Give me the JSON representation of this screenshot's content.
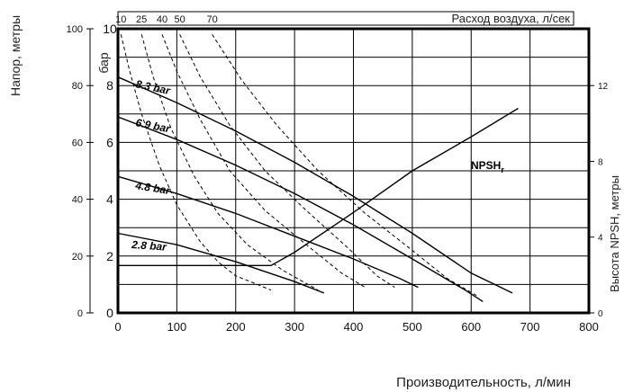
{
  "chart_data": {
    "type": "line",
    "title": "",
    "xlabel": "Производительность, л/мин",
    "ylabel_outer": "Напор, метры",
    "ylabel_inner": "бар",
    "ylabel_right": "Высота NPSH, метры",
    "top_axis_label": "Расход воздуха, л/сек",
    "xlim": [
      0,
      800
    ],
    "ylim_bar": [
      0,
      10
    ],
    "ylim_meters": [
      0,
      100
    ],
    "ylim_npsh": [
      0,
      15
    ],
    "x_ticks": [
      "0",
      "100",
      "200",
      "300",
      "400",
      "500",
      "600",
      "700",
      "800"
    ],
    "bar_ticks": [
      "0",
      "2",
      "4",
      "6",
      "8",
      "10"
    ],
    "meter_ticks": [
      "0",
      "20",
      "40",
      "60",
      "80",
      "100"
    ],
    "npsh_ticks": [
      "0",
      "4",
      "8",
      "12"
    ],
    "air_ticks": [
      "10",
      "25",
      "40",
      "50",
      "70"
    ],
    "grid": true,
    "series": [
      {
        "name": "8.3 bar",
        "unit": "bar",
        "x": [
          0,
          100,
          200,
          300,
          400,
          500,
          600,
          670
        ],
        "y": [
          8.3,
          7.4,
          6.4,
          5.3,
          4.1,
          2.8,
          1.4,
          0.7
        ]
      },
      {
        "name": "6.9 bar",
        "unit": "bar",
        "x": [
          0,
          100,
          200,
          300,
          400,
          500,
          590,
          620
        ],
        "y": [
          6.9,
          6.1,
          5.2,
          4.2,
          3.1,
          1.9,
          0.8,
          0.4
        ]
      },
      {
        "name": "4.8 bar",
        "unit": "bar",
        "x": [
          0,
          100,
          200,
          300,
          400,
          480,
          510
        ],
        "y": [
          4.8,
          4.2,
          3.5,
          2.7,
          1.9,
          1.2,
          0.9
        ]
      },
      {
        "name": "2.8 bar",
        "unit": "bar",
        "x": [
          0,
          100,
          200,
          300,
          350
        ],
        "y": [
          2.8,
          2.4,
          1.8,
          1.1,
          0.7
        ]
      },
      {
        "name": "NPSHr",
        "unit": "npsh_m",
        "x": [
          0,
          260,
          300,
          400,
          500,
          600,
          680
        ],
        "y": [
          2.5,
          2.5,
          3.2,
          5.3,
          7.5,
          9.3,
          10.8
        ]
      }
    ],
    "air_consumption_curves": [
      {
        "label": "10",
        "x": [
          5,
          20,
          40,
          70,
          100,
          140,
          170,
          200,
          225,
          260
        ],
        "y": [
          9.8,
          8.5,
          7.0,
          5.2,
          3.8,
          2.5,
          1.8,
          1.3,
          1.1,
          0.8
        ]
      },
      {
        "label": "25",
        "x": [
          40,
          60,
          90,
          130,
          170,
          220,
          280,
          340
        ],
        "y": [
          9.8,
          8.3,
          6.5,
          4.8,
          3.5,
          2.4,
          1.5,
          0.8
        ]
      },
      {
        "label": "40",
        "x": [
          75,
          100,
          140,
          190,
          250,
          320,
          380,
          420
        ],
        "y": [
          9.8,
          8.5,
          6.8,
          5.0,
          3.6,
          2.4,
          1.4,
          0.9
        ]
      },
      {
        "label": "50",
        "x": [
          105,
          140,
          190,
          250,
          320,
          390,
          440,
          470
        ],
        "y": [
          9.8,
          8.3,
          6.6,
          5.0,
          3.6,
          2.3,
          1.3,
          0.9
        ]
      },
      {
        "label": "70",
        "x": [
          160,
          210,
          270,
          340,
          420,
          500,
          560,
          610
        ],
        "y": [
          9.8,
          8.2,
          6.6,
          5.0,
          3.5,
          2.2,
          1.2,
          0.6
        ]
      }
    ],
    "series_labels": {
      "s83": "8.3 bar",
      "s69": "6.9 bar",
      "s48": "4.8 bar",
      "s28": "2.8 bar",
      "npsh_main": "NPSH",
      "npsh_sub": "r"
    }
  }
}
